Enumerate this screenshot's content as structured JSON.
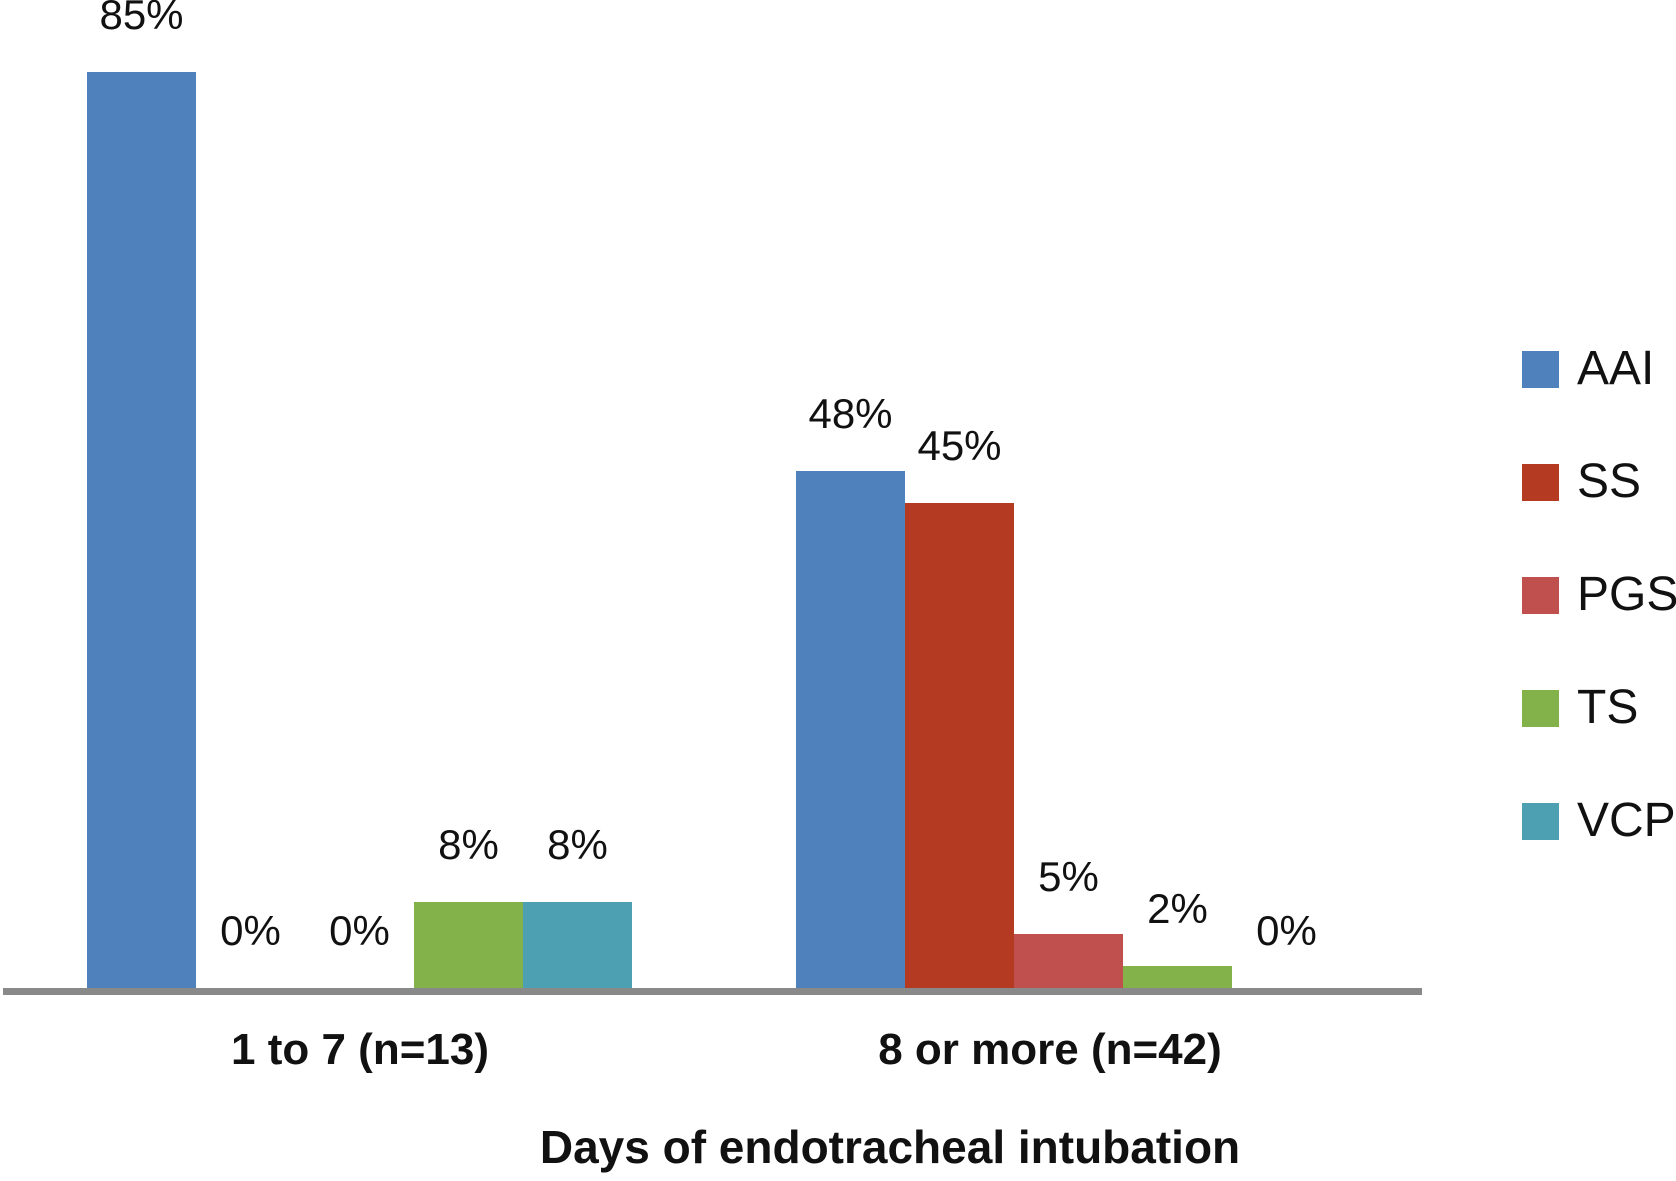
{
  "chart_data": {
    "type": "bar",
    "title": "",
    "xlabel": "Days of endotracheal intubation",
    "ylabel": "",
    "ylim": [
      0,
      100
    ],
    "grid": false,
    "legend_position": "right",
    "value_suffix": "%",
    "categories": [
      "1 to 7 (n=13)",
      "8 or more (n=42)"
    ],
    "series": [
      {
        "name": "AAI",
        "color": "#4F81BD",
        "values": [
          85,
          48
        ],
        "labels": [
          "85%",
          "48%"
        ]
      },
      {
        "name": "SS",
        "color": "#B43A21",
        "values": [
          0,
          45
        ],
        "labels": [
          "0%",
          "45%"
        ]
      },
      {
        "name": "PGS",
        "color": "#C0504D",
        "values": [
          0,
          5
        ],
        "labels": [
          "0%",
          "5%"
        ]
      },
      {
        "name": "TS",
        "color": "#84B24A",
        "values": [
          8,
          2
        ],
        "labels": [
          "8%",
          "2%"
        ]
      },
      {
        "name": "VCP",
        "color": "#4D9FB2",
        "values": [
          8,
          0
        ],
        "labels": [
          "8%",
          "0%"
        ]
      }
    ],
    "axis_line_color": "#898989"
  }
}
